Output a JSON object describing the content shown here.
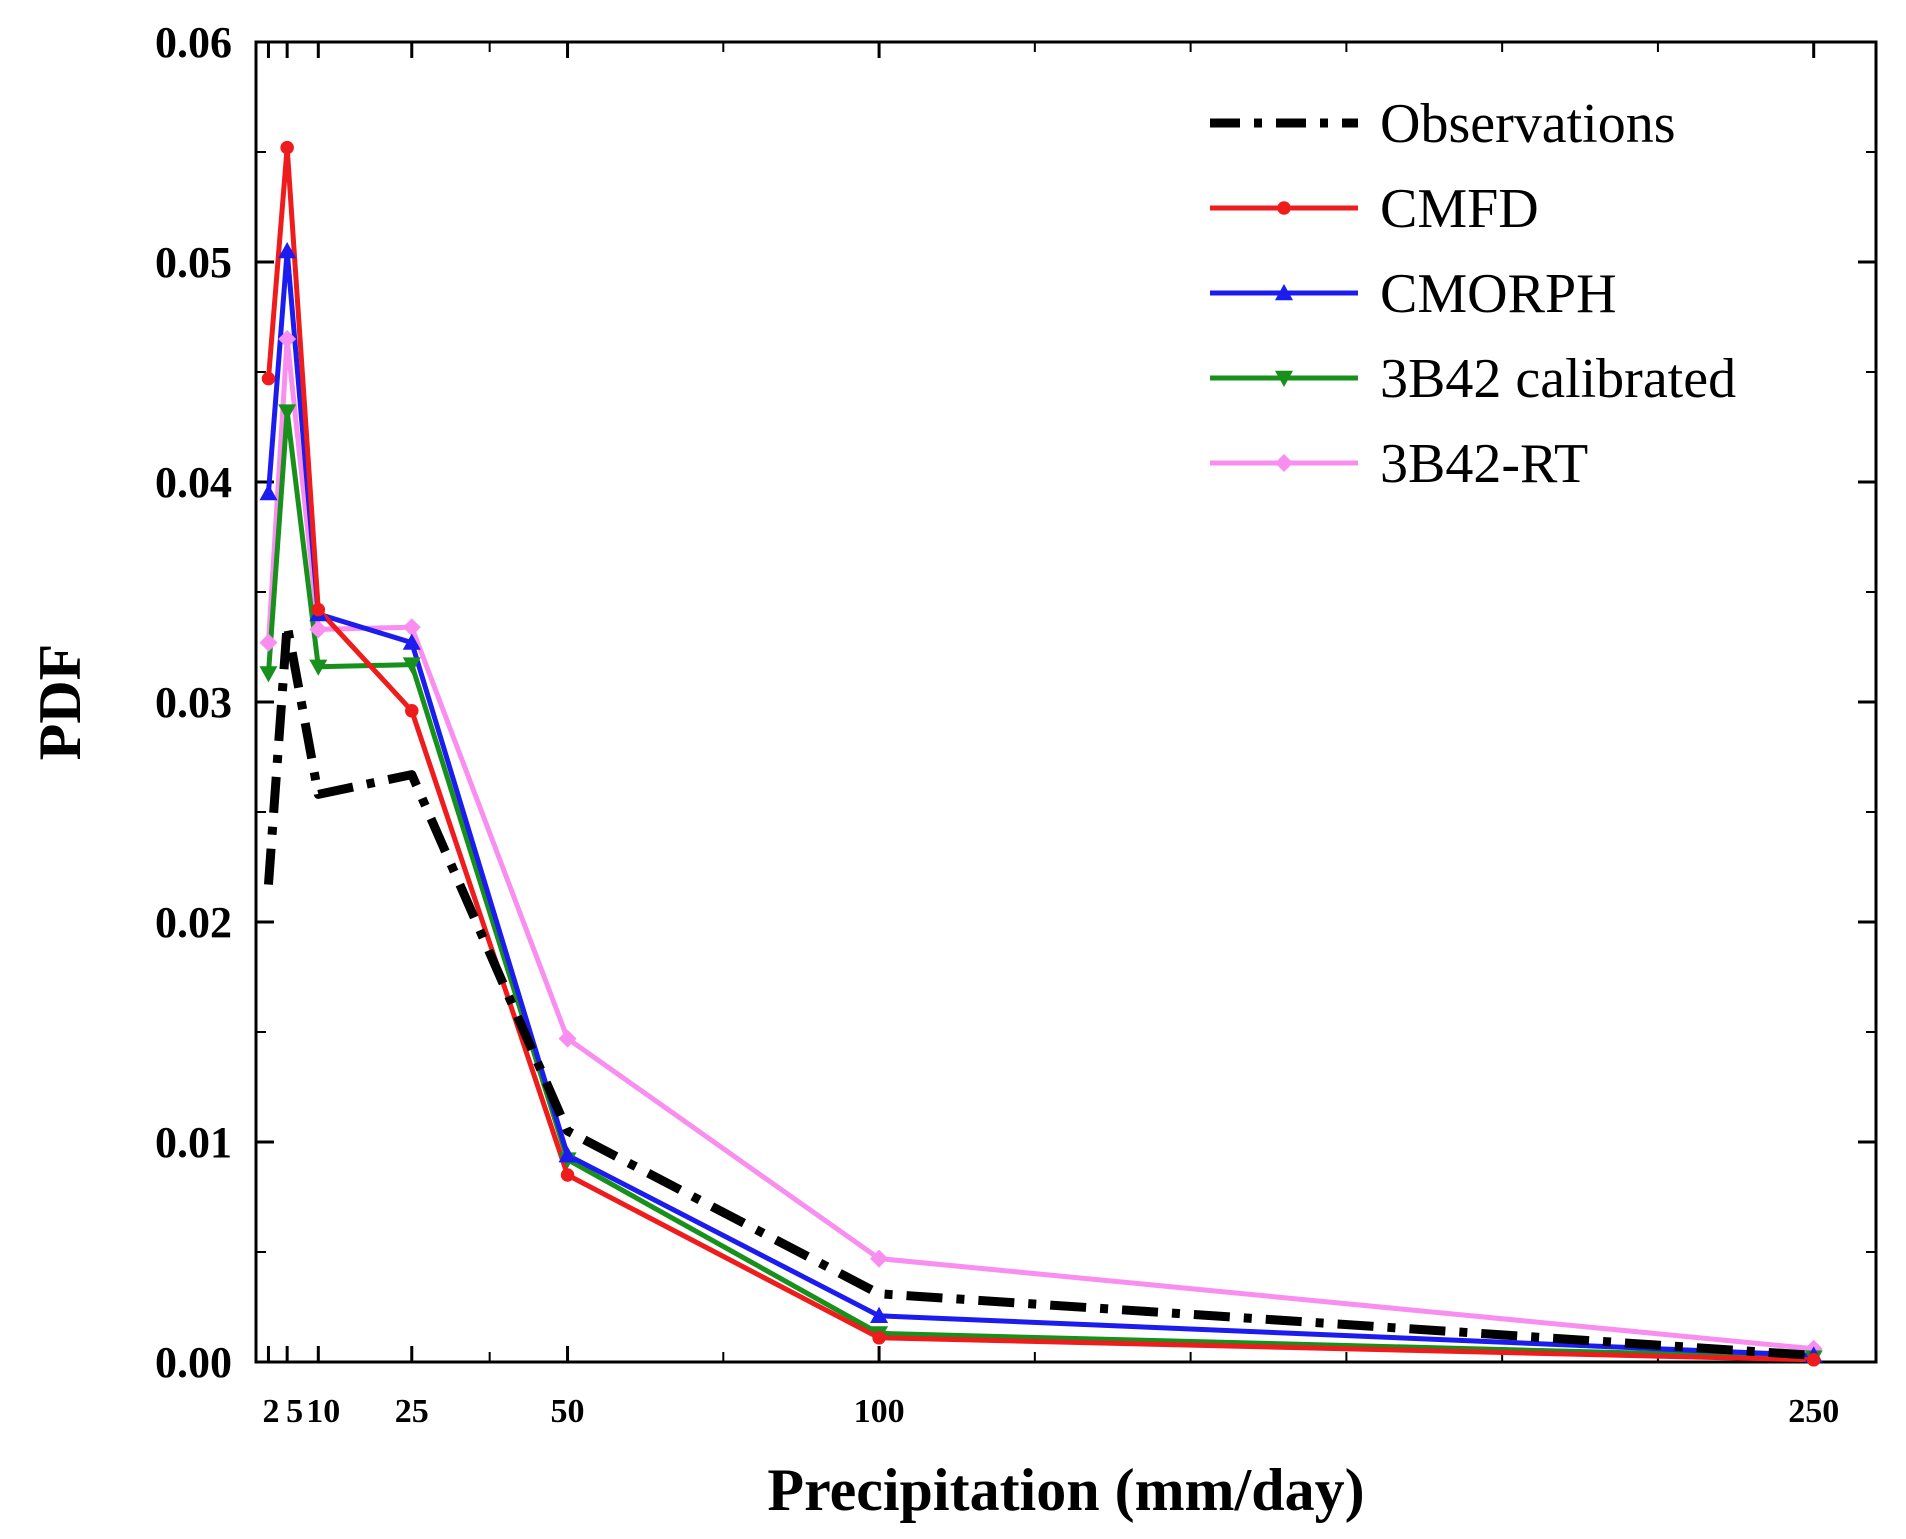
{
  "chart_data": {
    "type": "line",
    "title": "",
    "xlabel": "Precipitation (mm/day)",
    "ylabel": "PDF",
    "xlim": [
      0,
      260
    ],
    "ylim": [
      0,
      0.06
    ],
    "yticks": [
      0.0,
      0.01,
      0.02,
      0.03,
      0.04,
      0.05,
      0.06
    ],
    "ytick_labels": [
      "0.00",
      "0.01",
      "0.02",
      "0.03",
      "0.04",
      "0.05",
      "0.06"
    ],
    "xticks": [
      2,
      5,
      10,
      25,
      50,
      100,
      250
    ],
    "xtick_labels": [
      "2",
      "5",
      "10",
      "25",
      "50",
      "100",
      "250"
    ],
    "legend_position": "top-right",
    "series": [
      {
        "name": "Observations",
        "color": "#000000",
        "style": "dash-dot",
        "marker": "none",
        "x": [
          2,
          5,
          10,
          25,
          50,
          100,
          250
        ],
        "values": [
          0.0217,
          0.0335,
          0.0258,
          0.0267,
          0.0105,
          0.0031,
          0.0003
        ]
      },
      {
        "name": "CMFD",
        "color": "#ee1c1c",
        "style": "solid",
        "marker": "circle",
        "x": [
          2,
          5,
          10,
          25,
          50,
          100,
          250
        ],
        "values": [
          0.0447,
          0.0552,
          0.0342,
          0.0296,
          0.0085,
          0.0011,
          0.0001
        ]
      },
      {
        "name": "CMORPH",
        "color": "#1c1cee",
        "style": "solid",
        "marker": "triangle-up",
        "x": [
          2,
          5,
          10,
          25,
          50,
          100,
          250
        ],
        "values": [
          0.0395,
          0.0505,
          0.034,
          0.0327,
          0.0094,
          0.0021,
          0.0003
        ]
      },
      {
        "name": "3B42 calibrated",
        "color": "#17901c",
        "style": "solid",
        "marker": "triangle-down",
        "x": [
          2,
          5,
          10,
          25,
          50,
          100,
          250
        ],
        "values": [
          0.0313,
          0.0432,
          0.0316,
          0.0317,
          0.0092,
          0.0013,
          0.0002
        ]
      },
      {
        "name": "3B42-RT",
        "color": "#f88ef0",
        "style": "solid",
        "marker": "diamond",
        "x": [
          2,
          5,
          10,
          25,
          50,
          100,
          250
        ],
        "values": [
          0.0327,
          0.0465,
          0.0333,
          0.0334,
          0.0147,
          0.0047,
          0.0006
        ]
      }
    ]
  }
}
